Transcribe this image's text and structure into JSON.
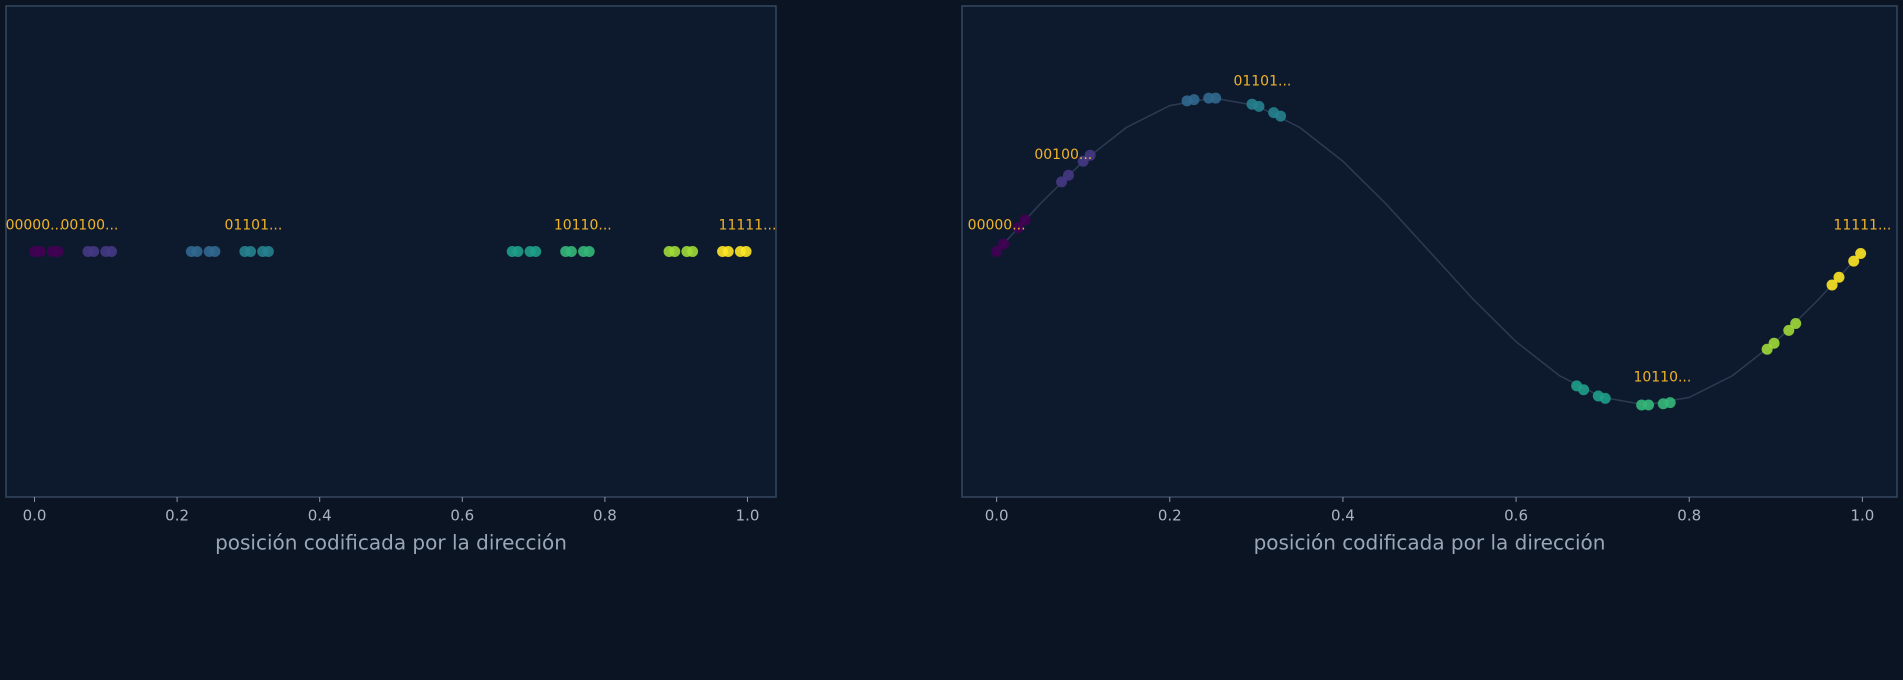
{
  "chart_data": [
    {
      "type": "scatter",
      "xlabel": "posición codificada por la dirección",
      "xlim": [
        -0.04,
        1.04
      ],
      "ylim": [
        -1.6,
        1.6
      ],
      "xticks": [
        {
          "value": 0,
          "label": "0.0"
        },
        0.2,
        0.4,
        0.6,
        0.8,
        {
          "value": 1,
          "label": "1.0"
        }
      ],
      "annotation_color": "#f0b429",
      "series": [
        {
          "color": "#440154",
          "x": [
            0.0,
            0.008,
            0.025,
            0.033
          ],
          "values": [
            0,
            0,
            0,
            0
          ]
        },
        {
          "color": "#443983",
          "x": [
            0.075,
            0.083,
            0.1,
            0.108
          ],
          "values": [
            0,
            0,
            0,
            0
          ]
        },
        {
          "color": "#31688e",
          "x": [
            0.22,
            0.228,
            0.245,
            0.253
          ],
          "values": [
            0,
            0,
            0,
            0
          ]
        },
        {
          "color": "#26828e",
          "x": [
            0.295,
            0.303,
            0.32,
            0.328
          ],
          "values": [
            0,
            0,
            0,
            0
          ]
        },
        {
          "color": "#1f9e89",
          "x": [
            0.67,
            0.678,
            0.695,
            0.703
          ],
          "values": [
            0,
            0,
            0,
            0
          ]
        },
        {
          "color": "#35b779",
          "x": [
            0.745,
            0.753,
            0.77,
            0.778
          ],
          "values": [
            0,
            0,
            0,
            0
          ]
        },
        {
          "color": "#a0da39",
          "x": [
            0.89,
            0.898,
            0.915,
            0.923
          ],
          "values": [
            0,
            0,
            0,
            0
          ]
        },
        {
          "color": "#fde725",
          "x": [
            0.965,
            0.973,
            0.99,
            0.998
          ],
          "values": [
            0,
            0,
            0,
            0
          ]
        }
      ],
      "annotations": [
        {
          "text": "00000...",
          "x": 0.0,
          "y": 0
        },
        {
          "text": "00100...",
          "x": 0.077,
          "y": 0
        },
        {
          "text": "01101...",
          "x": 0.307,
          "y": 0
        },
        {
          "text": "10110...",
          "x": 0.769,
          "y": 0
        },
        {
          "text": "11111...",
          "x": 1.0,
          "y": 0
        }
      ]
    },
    {
      "type": "scatter",
      "xlabel": "posición codificada por la dirección",
      "xlim": [
        -0.04,
        1.04
      ],
      "ylim": [
        -1.6,
        1.6
      ],
      "xticks": [
        {
          "value": 0,
          "label": "0.0"
        },
        0.2,
        0.4,
        0.6,
        0.8,
        {
          "value": 1,
          "label": "1.0"
        }
      ],
      "annotation_color": "#f0b429",
      "curve": {
        "color": "#2c3b52",
        "x": [
          0,
          0.05,
          0.1,
          0.15,
          0.2,
          0.25,
          0.3,
          0.35,
          0.4,
          0.45,
          0.5,
          0.55,
          0.6,
          0.65,
          0.7,
          0.75,
          0.8,
          0.85,
          0.9,
          0.95,
          1.0
        ],
        "values": [
          0,
          0.309,
          0.588,
          0.809,
          0.951,
          1,
          0.951,
          0.809,
          0.588,
          0.309,
          0,
          -0.309,
          -0.588,
          -0.809,
          -0.951,
          -1,
          -0.951,
          -0.809,
          -0.588,
          -0.309,
          0
        ]
      },
      "series": [
        {
          "color": "#440154",
          "x": [
            0.0,
            0.008,
            0.025,
            0.033
          ],
          "values": [
            0,
            0.05,
            0.156,
            0.206
          ]
        },
        {
          "color": "#443983",
          "x": [
            0.075,
            0.083,
            0.1,
            0.108
          ],
          "values": [
            0.454,
            0.497,
            0.588,
            0.627
          ]
        },
        {
          "color": "#31688e",
          "x": [
            0.22,
            0.228,
            0.245,
            0.253
          ],
          "values": [
            0.982,
            0.99,
            1.0,
            1.0
          ]
        },
        {
          "color": "#26828e",
          "x": [
            0.295,
            0.303,
            0.32,
            0.328
          ],
          "values": [
            0.96,
            0.946,
            0.905,
            0.882
          ]
        },
        {
          "color": "#1f9e89",
          "x": [
            0.67,
            0.678,
            0.695,
            0.703
          ],
          "values": [
            -0.876,
            -0.901,
            -0.942,
            -0.957
          ]
        },
        {
          "color": "#35b779",
          "x": [
            0.745,
            0.753,
            0.77,
            0.778
          ],
          "values": [
            -1.0,
            -1.0,
            -0.992,
            -0.985
          ]
        },
        {
          "color": "#a0da39",
          "x": [
            0.89,
            0.898,
            0.915,
            0.923
          ],
          "values": [
            -0.637,
            -0.598,
            -0.514,
            -0.469
          ]
        },
        {
          "color": "#fde725",
          "x": [
            0.965,
            0.973,
            0.99,
            0.998
          ],
          "values": [
            -0.218,
            -0.168,
            -0.063,
            -0.013
          ]
        }
      ],
      "annotations": [
        {
          "text": "00000...",
          "x": 0.0,
          "y": 0
        },
        {
          "text": "00100...",
          "x": 0.077,
          "y": 0.46
        },
        {
          "text": "01101...",
          "x": 0.307,
          "y": 0.94
        },
        {
          "text": "10110...",
          "x": 0.769,
          "y": -0.99
        },
        {
          "text": "11111...",
          "x": 1.0,
          "y": 0
        }
      ]
    }
  ]
}
